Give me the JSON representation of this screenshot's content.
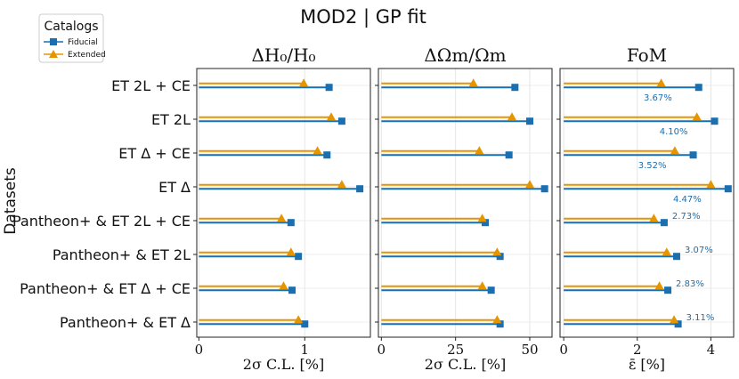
{
  "title": "MOD2 | GP fit",
  "ylabel": "Datasets",
  "legend": {
    "title": "Catalogs",
    "placement": "top-left",
    "entries": [
      {
        "name": "Fiducial",
        "color": "#1a6fb0",
        "marker": "square"
      },
      {
        "name": "Extended",
        "color": "#e69500",
        "marker": "triangle"
      }
    ]
  },
  "chart_data": [
    {
      "type": "bar",
      "title": "ΔH₀/H₀",
      "xlabel": "2σ C.L. [%]",
      "xlim": [
        -0.02,
        1.62
      ],
      "xticks": [
        0,
        1
      ],
      "grid": true,
      "categories": [
        "ET 2L + CE",
        "ET 2L",
        "ET Δ + CE",
        "ET Δ",
        "Pantheon+ & ET 2L + CE",
        "Pantheon+ & ET 2L",
        "Pantheon+ & ET Δ + CE",
        "Pantheon+ & ET Δ"
      ],
      "series": [
        {
          "name": "Fiducial",
          "values": [
            1.23,
            1.35,
            1.21,
            1.52,
            0.87,
            0.94,
            0.88,
            1.0
          ]
        },
        {
          "name": "Extended",
          "values": [
            0.99,
            1.25,
            1.12,
            1.35,
            0.78,
            0.87,
            0.8,
            0.94
          ]
        }
      ]
    },
    {
      "type": "bar",
      "title": "ΔΩm/Ωm",
      "xlabel": "2σ C.L. [%]",
      "xlim": [
        -1,
        57.5
      ],
      "xticks": [
        0,
        25,
        50
      ],
      "grid": true,
      "categories": [
        "ET 2L + CE",
        "ET 2L",
        "ET Δ + CE",
        "ET Δ",
        "Pantheon+ & ET 2L + CE",
        "Pantheon+ & ET 2L",
        "Pantheon+ & ET Δ + CE",
        "Pantheon+ & ET Δ"
      ],
      "series": [
        {
          "name": "Fiducial",
          "values": [
            45,
            50,
            43,
            55,
            35,
            40,
            37,
            40
          ]
        },
        {
          "name": "Extended",
          "values": [
            31,
            44,
            33,
            50,
            34,
            39,
            34,
            39
          ]
        }
      ]
    },
    {
      "type": "bar",
      "title": "FoM",
      "xlabel": "ε̄ [%]",
      "xlim": [
        -0.1,
        4.62
      ],
      "xticks": [
        0,
        2,
        4
      ],
      "grid": true,
      "categories": [
        "ET 2L + CE",
        "ET 2L",
        "ET Δ + CE",
        "ET Δ",
        "Pantheon+ & ET 2L + CE",
        "Pantheon+ & ET 2L",
        "Pantheon+ & ET Δ + CE",
        "Pantheon+ & ET Δ"
      ],
      "series": [
        {
          "name": "Fiducial",
          "values": [
            3.67,
            4.1,
            3.52,
            4.47,
            2.73,
            3.07,
            2.83,
            3.11
          ]
        },
        {
          "name": "Extended",
          "values": [
            2.65,
            3.62,
            3.02,
            4.0,
            2.45,
            2.8,
            2.6,
            3.0
          ]
        }
      ],
      "annotations": [
        "3.67%",
        "4.10%",
        "3.52%",
        "4.47%",
        "2.73%",
        "3.07%",
        "2.83%",
        "3.11%"
      ]
    }
  ]
}
